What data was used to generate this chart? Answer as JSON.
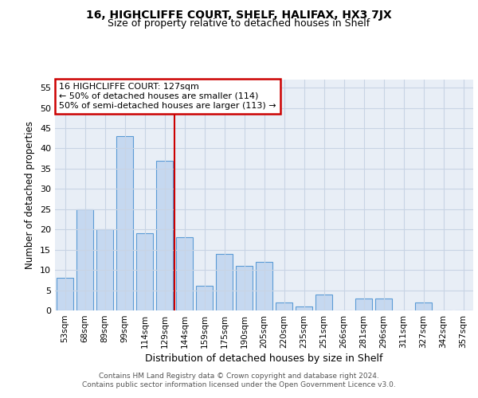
{
  "title": "16, HIGHCLIFFE COURT, SHELF, HALIFAX, HX3 7JX",
  "subtitle": "Size of property relative to detached houses in Shelf",
  "xlabel": "Distribution of detached houses by size in Shelf",
  "ylabel": "Number of detached properties",
  "bar_labels": [
    "53sqm",
    "68sqm",
    "89sqm",
    "99sqm",
    "114sqm",
    "129sqm",
    "144sqm",
    "159sqm",
    "175sqm",
    "190sqm",
    "205sqm",
    "220sqm",
    "235sqm",
    "251sqm",
    "266sqm",
    "281sqm",
    "296sqm",
    "311sqm",
    "327sqm",
    "342sqm",
    "357sqm"
  ],
  "bar_values": [
    8,
    25,
    20,
    43,
    19,
    37,
    18,
    6,
    14,
    11,
    12,
    2,
    1,
    4,
    0,
    3,
    3,
    0,
    2,
    0,
    0
  ],
  "bar_color": "#c5d8f0",
  "bar_edge_color": "#5b9bd5",
  "grid_color": "#c8d4e4",
  "bg_color": "#e8eef6",
  "vline_x": 5.5,
  "vline_color": "#cc0000",
  "annotation_lines": [
    "16 HIGHCLIFFE COURT: 127sqm",
    "← 50% of detached houses are smaller (114)",
    "50% of semi-detached houses are larger (113) →"
  ],
  "annotation_box_color": "#cc0000",
  "footer_line1": "Contains HM Land Registry data © Crown copyright and database right 2024.",
  "footer_line2": "Contains public sector information licensed under the Open Government Licence v3.0.",
  "ylim": [
    0,
    57
  ],
  "yticks": [
    0,
    5,
    10,
    15,
    20,
    25,
    30,
    35,
    40,
    45,
    50,
    55
  ]
}
